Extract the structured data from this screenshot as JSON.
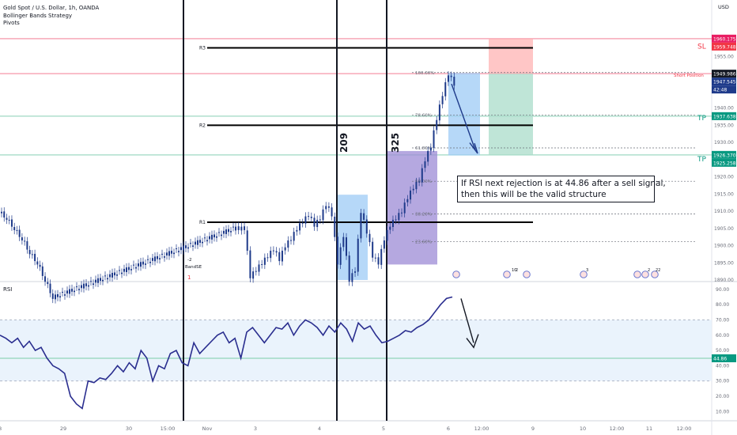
{
  "header": {
    "symbol_line": "Gold Spot / U.S. Dollar, 1h, OANDA",
    "indicator_1": "Bollinger Bands Strategy",
    "indicator_2": "Pivots",
    "currency": "USD"
  },
  "annotation": {
    "line1": "If RSI next rejection is at 44.86 after a sell signal,",
    "line2": "then this will be the valid structure"
  },
  "vertical_labels": [
    "209",
    "325"
  ],
  "markers": {
    "sl": "SL",
    "tp1": "TP",
    "tp2": "TP",
    "short_position": "Short Position",
    "bb_label": "BandSE",
    "bb_minus2": "-2",
    "bb_one": "1"
  },
  "price_badges": [
    {
      "value": "1960.175",
      "color": "#e91e63"
    },
    {
      "value": "1959.748",
      "color": "#f23645"
    },
    {
      "value": "1949.986",
      "color": "#131722"
    },
    {
      "value": "1947.545",
      "color": "#1e3a8a"
    },
    {
      "value": "42:48",
      "color": "#1e3a8a"
    },
    {
      "value": "1937.638",
      "color": "#089981"
    },
    {
      "value": "1926.370",
      "color": "#089981"
    },
    {
      "value": "1925.258",
      "color": "#089981"
    },
    {
      "value": "44.86",
      "color": "#089981"
    }
  ],
  "fib_labels": [
    "100.00%",
    "78.60%",
    "61.80%",
    "50.00%",
    "38.20%",
    "23.60%"
  ],
  "event_labels": [
    "10",
    "2",
    "3",
    "2",
    "22"
  ],
  "colors": {
    "candle": "#1e3a8a",
    "rsi": "#2a2e8f",
    "sl_line": "#f7a8b8",
    "tp_line": "#9fd9c3",
    "pivot": "#000000",
    "box_blue": "#9ecbf5",
    "box_purple": "#9c8bd6",
    "target": "#ffb3b3",
    "stop_zone": "#a9dcc9"
  },
  "chart_data": [
    {
      "type": "candlestick",
      "title": "Gold Spot / U.S. Dollar, 1h, OANDA",
      "x_ticks": [
        "8",
        "29",
        "30",
        "15:00",
        "Nov",
        "3",
        "4",
        "5",
        "6",
        "12:00",
        "9",
        "10",
        "12:00",
        "11",
        "12:00"
      ],
      "y_ticks": [
        1950.0,
        1945.0,
        1940.0,
        1935.0,
        1930.0,
        1920.0,
        1915.0,
        1910.0,
        1905.0,
        1900.0,
        1895.0,
        1890.0,
        1955.0
      ],
      "ylim": [
        1887,
        1965
      ],
      "pivots": [
        {
          "name": "R3",
          "value": 1957.5
        },
        {
          "name": "R2",
          "value": 1935.0
        },
        {
          "name": "R1",
          "value": 1906.8
        }
      ],
      "levels": {
        "stop_loss": 1960.175,
        "short_entry": 1949.986,
        "take_profit_1": 1937.638,
        "take_profit_2": 1926.37
      },
      "close_path": [
        1910,
        1908,
        1905,
        1902,
        1898,
        1895,
        1890,
        1885,
        1905,
        1905,
        1905,
        1891,
        1893,
        1895,
        1897,
        1899,
        1896,
        1900,
        1902,
        1905,
        1907,
        1909,
        1906,
        1908,
        1912,
        1909,
        1895,
        1903,
        1890,
        1893,
        1910,
        1904,
        1897,
        1895,
        1902,
        1906,
        1908,
        1910,
        1914,
        1917,
        1919,
        1925,
        1929,
        1937,
        1944,
        1950,
        1947
      ]
    },
    {
      "type": "line",
      "title": "RSI",
      "series": [
        {
          "name": "RSI",
          "values": [
            60,
            58,
            55,
            58,
            52,
            56,
            50,
            52,
            45,
            40,
            38,
            35,
            20,
            15,
            12,
            30,
            29,
            32,
            31,
            35,
            40,
            36,
            42,
            38,
            50,
            45,
            30,
            40,
            38,
            48,
            50,
            42,
            40,
            55,
            48,
            52,
            56,
            60,
            62,
            55,
            58,
            45,
            62,
            65,
            60,
            55,
            60,
            65,
            64,
            68,
            60,
            66,
            70,
            68,
            65,
            60,
            66,
            62,
            68,
            64,
            56,
            68,
            64,
            66,
            60,
            55,
            56,
            58,
            60,
            63,
            62,
            65,
            67,
            70,
            75,
            80,
            84,
            85
          ]
        }
      ],
      "bands": [
        30,
        70
      ],
      "level_line": 44.86,
      "y_ticks": [
        90,
        80,
        70,
        60,
        50,
        40,
        30,
        20,
        10
      ],
      "ylim": [
        5,
        92
      ]
    }
  ]
}
